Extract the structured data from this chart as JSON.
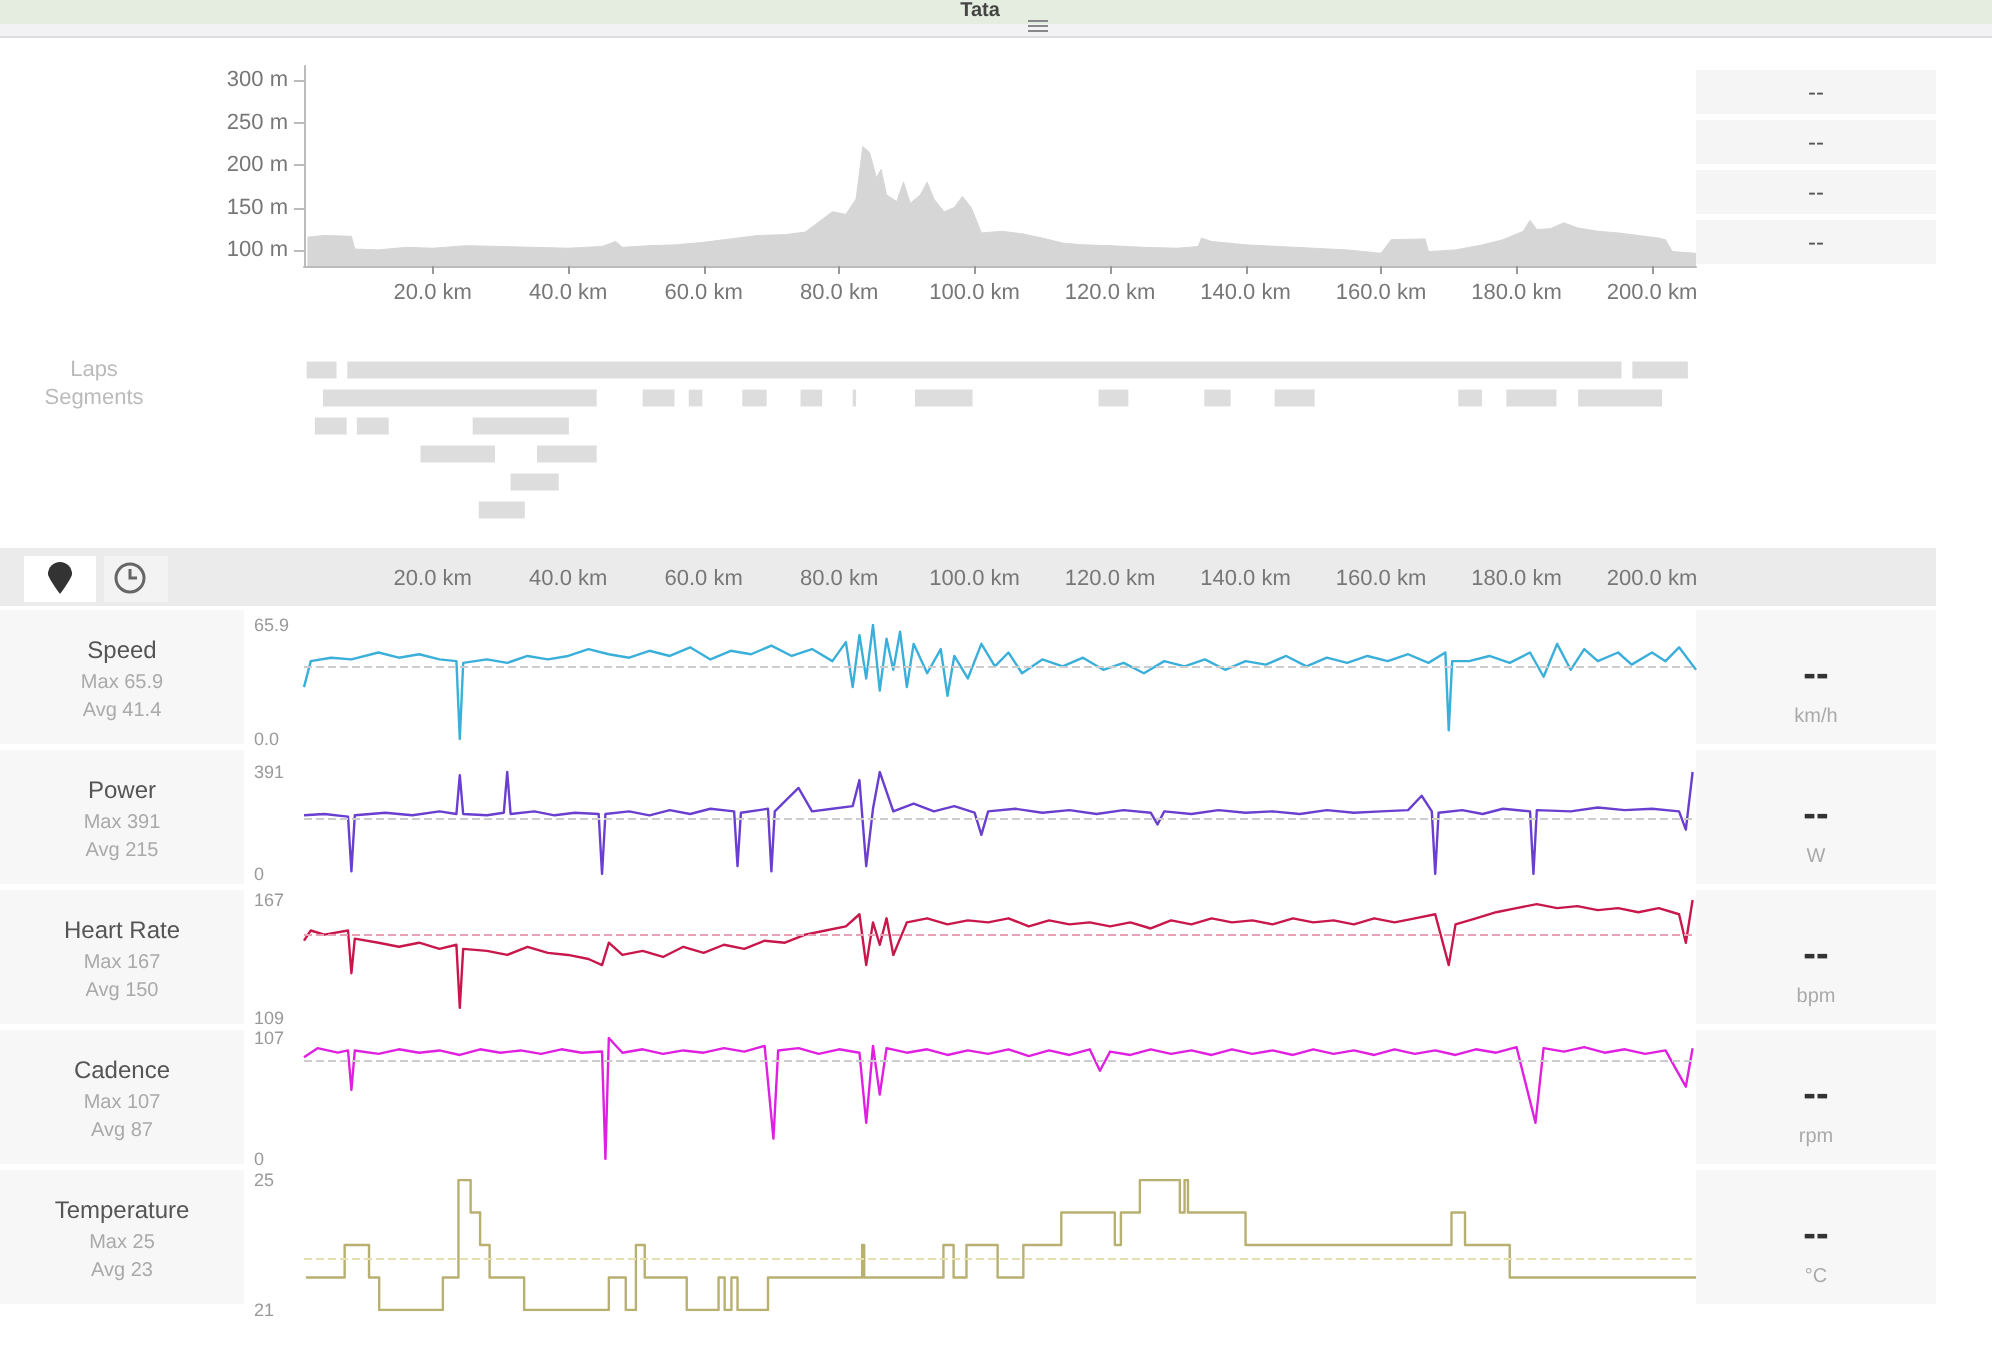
{
  "chart_data": [
    {
      "type": "area",
      "x": [
        1.5,
        4,
        8,
        8.5,
        12,
        16,
        20,
        25,
        30,
        35,
        40,
        45,
        47,
        48,
        52,
        56,
        60,
        64,
        68,
        72,
        75,
        77,
        79,
        81,
        82.5,
        83.5,
        84.5,
        85.5,
        86.2,
        87,
        88.5,
        89.5,
        90.5,
        92,
        93,
        94,
        95.5,
        97,
        98.2,
        99.5,
        101,
        104,
        107,
        110,
        113,
        116,
        120,
        125,
        130,
        133,
        133.5,
        135,
        140,
        145,
        150,
        155,
        160,
        161.5,
        166.5,
        167,
        171,
        175,
        178,
        181,
        182,
        183,
        185,
        187,
        189,
        192,
        195,
        198,
        201,
        202,
        203,
        206.5
      ],
      "series": [
        {
          "color": "#d6d6d6",
          "values": [
            115,
            117,
            116,
            101,
            100,
            103,
            102,
            105,
            104,
            103,
            102,
            104,
            110,
            103,
            105,
            106,
            109,
            113,
            117,
            118,
            121,
            133,
            145,
            142,
            160,
            222,
            215,
            185,
            195,
            165,
            157,
            180,
            155,
            165,
            180,
            160,
            145,
            150,
            163,
            150,
            120,
            122,
            119,
            114,
            108,
            106,
            105,
            103,
            102,
            104,
            114,
            110,
            106,
            104,
            102,
            100,
            96,
            112,
            113,
            98,
            100,
            106,
            112,
            122,
            135,
            124,
            125,
            132,
            126,
            122,
            120,
            117,
            114,
            112,
            98,
            96
          ]
        }
      ],
      "xlim": [
        1,
        206.5
      ],
      "xticks": [
        {
          "value": 20,
          "label": "20.0 km"
        },
        {
          "value": 40,
          "label": "40.0 km"
        },
        {
          "value": 60,
          "label": "60.0 km"
        },
        {
          "value": 80,
          "label": "80.0 km"
        },
        {
          "value": 100,
          "label": "100.0 km"
        },
        {
          "value": 120,
          "label": "120.0 km"
        },
        {
          "value": 140,
          "label": "140.0 km"
        },
        {
          "value": 160,
          "label": "160.0 km"
        },
        {
          "value": 180,
          "label": "180.0 km"
        },
        {
          "value": 200,
          "label": "200.0 km"
        }
      ],
      "ylim": [
        81,
        317
      ],
      "yticks": [
        {
          "value": 100,
          "label": "100 m"
        },
        {
          "value": 150,
          "label": "150 m"
        },
        {
          "value": 200,
          "label": "200 m"
        },
        {
          "value": 250,
          "label": "250 m"
        },
        {
          "value": 300,
          "label": "300 m"
        }
      ],
      "marker": "none",
      "annotations": [
        "Tata",
        "--",
        "--",
        "--",
        "--"
      ]
    },
    {
      "type": "bar",
      "orientation": "horizontal",
      "categories": [
        "Laps",
        "Segments",
        null,
        null,
        null,
        null
      ],
      "xlim": [
        1,
        206.5
      ],
      "tick_labels": "y",
      "series": [
        {
          "color": "#dddddd",
          "base": [
            1.4,
            3.8,
            2.6,
            18.2,
            31.5,
            26.8
          ],
          "values": [
            4.4,
            40.4,
            4.7,
            11.0,
            7.1,
            6.8
          ]
        },
        {
          "color": "#dddddd",
          "base": [
            7.4,
            51.0,
            8.8,
            35.4,
            null,
            null
          ],
          "values": [
            188.1,
            4.7,
            4.7,
            8.8,
            null,
            null
          ]
        },
        {
          "color": "#dddddd",
          "base": [
            197.1,
            57.8,
            25.9,
            null,
            null,
            null
          ],
          "values": [
            8.2,
            2.0,
            14.2,
            null,
            null,
            null
          ]
        },
        {
          "color": "#dddddd",
          "base": [
            null,
            65.7,
            null,
            null,
            null,
            null
          ],
          "values": [
            null,
            3.6,
            null,
            null,
            null,
            null
          ]
        },
        {
          "color": "#dddddd",
          "base": [
            null,
            74.3,
            null,
            null,
            null,
            null
          ],
          "values": [
            null,
            3.2,
            null,
            null,
            null,
            null
          ]
        },
        {
          "color": "#dddddd",
          "base": [
            null,
            82.0,
            null,
            null,
            null,
            null
          ],
          "values": [
            null,
            0.5,
            null,
            null,
            null,
            null
          ]
        },
        {
          "color": "#dddddd",
          "base": [
            null,
            91.2,
            null,
            null,
            null,
            null
          ],
          "values": [
            null,
            8.5,
            null,
            null,
            null,
            null
          ]
        },
        {
          "color": "#dddddd",
          "base": [
            null,
            118.3,
            null,
            null,
            null,
            null
          ],
          "values": [
            null,
            4.4,
            null,
            null,
            null,
            null
          ]
        },
        {
          "color": "#dddddd",
          "base": [
            null,
            133.9,
            null,
            null,
            null,
            null
          ],
          "values": [
            null,
            3.9,
            null,
            null,
            null,
            null
          ]
        },
        {
          "color": "#dddddd",
          "base": [
            null,
            144.3,
            null,
            null,
            null,
            null
          ],
          "values": [
            null,
            5.9,
            null,
            null,
            null,
            null
          ]
        },
        {
          "color": "#dddddd",
          "base": [
            null,
            171.4,
            null,
            null,
            null,
            null
          ],
          "values": [
            null,
            3.5,
            null,
            null,
            null,
            null
          ]
        },
        {
          "color": "#dddddd",
          "base": [
            null,
            178.5,
            null,
            null,
            null,
            null
          ],
          "values": [
            null,
            7.4,
            null,
            null,
            null,
            null
          ]
        },
        {
          "color": "#dddddd",
          "base": [
            null,
            189.1,
            null,
            null,
            null,
            null
          ],
          "values": [
            null,
            12.4,
            null,
            null,
            null,
            null
          ]
        }
      ]
    },
    {
      "type": "line",
      "title": "Speed",
      "annotations": [
        "Max 65.9",
        "Avg 41.4",
        "--",
        "km/h"
      ],
      "marker": "none",
      "x": [
        1,
        2,
        5,
        8,
        12,
        15,
        18,
        21,
        23.5,
        24,
        24.5,
        28,
        31,
        34,
        37,
        40,
        43,
        46,
        49,
        52,
        55,
        58,
        61,
        64,
        67,
        70,
        73,
        76,
        79,
        81,
        82,
        83,
        84,
        85,
        86,
        87,
        88,
        89,
        90,
        91,
        93,
        95,
        96,
        97,
        99,
        101,
        103,
        105,
        107,
        110,
        113,
        116,
        119,
        122,
        125,
        128,
        131,
        134,
        137,
        140,
        143,
        146,
        149,
        152,
        155,
        158,
        161,
        164,
        167,
        169.5,
        170,
        170.5,
        173,
        176,
        179,
        182,
        184,
        186,
        188,
        190,
        192,
        195,
        197,
        200,
        202,
        204,
        206.5
      ],
      "series": [
        {
          "color": "#3aafd9",
          "values": [
            30,
            45,
            47,
            46,
            50,
            47,
            49,
            46,
            45,
            0,
            44,
            46,
            44,
            48,
            46,
            48,
            52,
            49,
            47,
            51,
            48,
            53,
            46,
            51,
            49,
            54,
            48,
            52,
            45,
            56,
            30,
            60,
            35,
            65.9,
            28,
            58,
            40,
            62,
            30,
            55,
            38,
            52,
            25,
            48,
            35,
            55,
            42,
            50,
            38,
            46,
            42,
            47,
            40,
            44,
            38,
            45,
            42,
            46,
            40,
            45,
            43,
            48,
            42,
            47,
            44,
            48,
            45,
            49,
            44,
            50,
            5,
            45,
            45,
            48,
            44,
            50,
            36,
            55,
            40,
            52,
            45,
            50,
            43,
            50,
            45,
            53,
            40
          ]
        }
      ],
      "xlim": [
        1,
        206.5
      ],
      "xticks": [
        {
          "value": 20,
          "label": "20.0 km"
        },
        {
          "value": 40,
          "label": "40.0 km"
        },
        {
          "value": 60,
          "label": "60.0 km"
        },
        {
          "value": 80,
          "label": "80.0 km"
        },
        {
          "value": 100,
          "label": "100.0 km"
        },
        {
          "value": 120,
          "label": "120.0 km"
        },
        {
          "value": 140,
          "label": "140.0 km"
        },
        {
          "value": 160,
          "label": "160.0 km"
        },
        {
          "value": 180,
          "label": "180.0 km"
        },
        {
          "value": 200,
          "label": "200.0 km"
        }
      ],
      "ylim": [
        0,
        65.9
      ],
      "yticks": [
        {
          "value": 0,
          "label": "0.0"
        },
        65.9
      ],
      "ref_lines": [
        {
          "axis": "y",
          "value": 41.4,
          "color": "#cccccc",
          "line_style": "dashed"
        }
      ]
    },
    {
      "type": "line",
      "title": "Power",
      "annotations": [
        "Max 391",
        "Avg 215",
        "--",
        "W"
      ],
      "marker": "none",
      "tick_labels": "y",
      "x": [
        1,
        4,
        7.5,
        8,
        8.5,
        13,
        17,
        21,
        23.5,
        24,
        24.5,
        28,
        30.5,
        31,
        31.5,
        35,
        38,
        41,
        44.5,
        45,
        45.5,
        49,
        52,
        55,
        58,
        61,
        64.5,
        65,
        65.5,
        69.5,
        70,
        70.5,
        74,
        76,
        79,
        82,
        83,
        84,
        85,
        86,
        88,
        91,
        94,
        97,
        100,
        101,
        102,
        106,
        110,
        114,
        118,
        122,
        126,
        127,
        128,
        132,
        136,
        140,
        144,
        148,
        152,
        156,
        160,
        164,
        166,
        167.5,
        168,
        168.5,
        172,
        175,
        178,
        182,
        182.5,
        183,
        188,
        192,
        196,
        200,
        204,
        205,
        206
      ],
      "series": [
        {
          "color": "#6a3fd0",
          "values": [
            225,
            230,
            220,
            10,
            225,
            235,
            225,
            240,
            230,
            379,
            230,
            225,
            235,
            391,
            230,
            240,
            225,
            235,
            230,
            0,
            230,
            240,
            225,
            245,
            230,
            250,
            240,
            30,
            235,
            250,
            10,
            240,
            330,
            240,
            250,
            260,
            360,
            30,
            250,
            391,
            240,
            270,
            240,
            260,
            235,
            150,
            240,
            250,
            235,
            245,
            230,
            245,
            235,
            190,
            240,
            230,
            245,
            235,
            240,
            230,
            245,
            235,
            240,
            245,
            300,
            240,
            0,
            235,
            245,
            230,
            250,
            240,
            0,
            245,
            240,
            255,
            245,
            250,
            240,
            170,
            391
          ]
        }
      ],
      "xlim": [
        1,
        206.5
      ],
      "ylim": [
        0,
        391
      ],
      "yticks": [
        0,
        391
      ],
      "ref_lines": [
        {
          "axis": "y",
          "value": 215,
          "color": "#cccccc",
          "line_style": "dashed"
        }
      ]
    },
    {
      "type": "line",
      "title": "Heart Rate",
      "annotations": [
        "Max 167",
        "Avg 150",
        "--",
        "bpm"
      ],
      "marker": "none",
      "tick_labels": "y",
      "x": [
        1,
        2,
        4,
        7.5,
        8,
        8.5,
        12,
        15,
        18,
        21,
        23.5,
        24,
        24.5,
        28,
        31,
        34,
        37,
        40,
        43,
        45,
        46,
        48,
        51,
        54,
        57,
        60,
        63,
        66,
        69,
        72,
        75,
        78,
        81,
        83,
        84,
        85,
        86,
        87,
        88,
        90,
        93,
        96,
        99,
        102,
        105,
        108,
        111,
        114,
        117,
        120,
        123,
        126,
        129,
        132,
        135,
        138,
        141,
        144,
        147,
        150,
        153,
        156,
        159,
        162,
        165,
        168,
        170,
        171,
        174,
        177,
        180,
        183,
        186,
        189,
        192,
        195,
        198,
        201,
        204,
        205,
        206
      ],
      "series": [
        {
          "color": "#c8174a",
          "values": [
            147,
            152,
            150,
            152,
            131,
            148,
            146,
            144,
            146,
            143,
            145,
            114,
            143,
            142,
            140,
            144,
            141,
            140,
            138,
            135,
            146,
            140,
            142,
            139,
            144,
            141,
            145,
            143,
            147,
            146,
            150,
            152,
            154,
            160,
            135,
            156,
            145,
            158,
            140,
            156,
            158,
            155,
            157,
            156,
            158,
            154,
            157,
            155,
            156,
            154,
            156,
            153,
            157,
            155,
            158,
            156,
            157,
            155,
            158,
            156,
            157,
            155,
            158,
            156,
            158,
            160,
            135,
            155,
            158,
            161,
            163,
            165,
            163,
            164,
            162,
            163,
            161,
            163,
            160,
            146,
            167
          ]
        }
      ],
      "xlim": [
        1,
        206.5
      ],
      "ylim": [
        109,
        167
      ],
      "yticks": [
        109,
        167
      ],
      "ref_lines": [
        {
          "axis": "y",
          "value": 150,
          "color": "#e8a0b4",
          "line_style": "dashed"
        }
      ]
    },
    {
      "type": "line",
      "title": "Cadence",
      "annotations": [
        "Max 107",
        "Avg 87",
        "--",
        "rpm"
      ],
      "marker": "none",
      "tick_labels": "y",
      "x": [
        1,
        3,
        6,
        7.5,
        8,
        8.5,
        12,
        15,
        18,
        21,
        24,
        27,
        30,
        33,
        36,
        39,
        42,
        45,
        45.5,
        46,
        48,
        51,
        54,
        57,
        60,
        63,
        66,
        69,
        70.3,
        71,
        74,
        77,
        80,
        83,
        84,
        85,
        86,
        87,
        90,
        93,
        96,
        99,
        102,
        105,
        108,
        111,
        114,
        117,
        118.5,
        120,
        123,
        126,
        129,
        132,
        135,
        138,
        141,
        144,
        147,
        150,
        153,
        156,
        159,
        162,
        165,
        168,
        171,
        174,
        177,
        180,
        182.8,
        184,
        187,
        190,
        193,
        196,
        199,
        202,
        205,
        206
      ],
      "series": [
        {
          "color": "#e020e0",
          "values": [
            90,
            98,
            94,
            96,
            61,
            96,
            93,
            97,
            94,
            96,
            92,
            97,
            94,
            96,
            93,
            97,
            94,
            95,
            0,
            107,
            94,
            97,
            93,
            96,
            94,
            98,
            95,
            100,
            18,
            96,
            98,
            93,
            97,
            94,
            32,
            100,
            57,
            98,
            94,
            97,
            92,
            96,
            93,
            97,
            91,
            96,
            92,
            97,
            78,
            95,
            92,
            97,
            93,
            96,
            92,
            97,
            93,
            96,
            92,
            97,
            93,
            96,
            92,
            97,
            93,
            96,
            92,
            97,
            94,
            99,
            32,
            98,
            95,
            99,
            94,
            97,
            93,
            96,
            64,
            98
          ]
        }
      ],
      "xlim": [
        1,
        206.5
      ],
      "ylim": [
        0,
        107
      ],
      "yticks": [
        0,
        107
      ],
      "ref_lines": [
        {
          "axis": "y",
          "value": 87,
          "color": "#cccccc",
          "line_style": "dashed"
        }
      ]
    },
    {
      "type": "step",
      "title": "Temperature",
      "annotations": [
        "Max 25",
        "Avg 23",
        "--",
        "°C"
      ],
      "marker": "none",
      "tick_labels": "y",
      "x": [
        1.3,
        7.0,
        10.6,
        12.1,
        21.5,
        23.8,
        25.6,
        27,
        28.4,
        33.5,
        46,
        48.5,
        50,
        51.3,
        57.5,
        62.2,
        63.1,
        64.1,
        65,
        69.5,
        83.4,
        83.7,
        95.4,
        96.9,
        98.8,
        103.4,
        107.2,
        112.8,
        120.7,
        121.6,
        124.4,
        130.3,
        131,
        131.5,
        140,
        170.4,
        172.4,
        179,
        206.5
      ],
      "series": [
        {
          "color": "#b8b070",
          "values": [
            22,
            23,
            22,
            21,
            22,
            25,
            24,
            23,
            22,
            21,
            22,
            21,
            23,
            22,
            21,
            22,
            21,
            22,
            21,
            22,
            23,
            22,
            23,
            22,
            23,
            22,
            23,
            24,
            23,
            24,
            25,
            24,
            25,
            24,
            23,
            24,
            23,
            22,
            22
          ]
        }
      ],
      "xlim": [
        1,
        206.5
      ],
      "ylim": [
        21,
        25
      ],
      "yticks": [
        21,
        25
      ],
      "ref_lines": [
        {
          "axis": "y",
          "value": 22.6,
          "color": "#e6e0b0",
          "line_style": "dashed"
        }
      ]
    }
  ]
}
